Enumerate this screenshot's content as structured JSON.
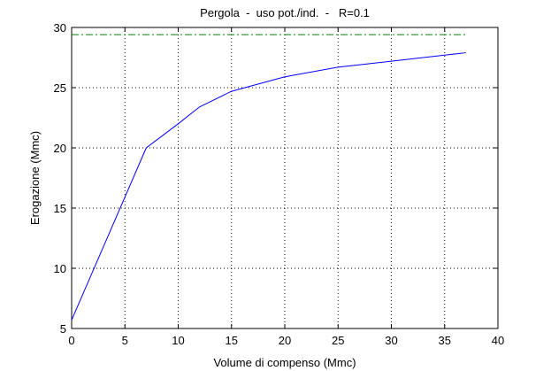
{
  "chart_data": {
    "type": "line",
    "title": "Pergola  -  uso pot./ind.  -   R=0.1",
    "xlabel": "Volume di compenso (Mmc)",
    "ylabel": "Erogazione (Mmc)",
    "xlim": [
      0,
      40
    ],
    "xticks": [
      0,
      5,
      10,
      15,
      20,
      25,
      30,
      35,
      40
    ],
    "ylim": [
      5,
      30
    ],
    "yticks": [
      5,
      10,
      15,
      20,
      25,
      30
    ],
    "grid": true,
    "series": [
      {
        "color": "#0000ff",
        "linestyle": "solid",
        "x": [
          0,
          7,
          10,
          12,
          15,
          20,
          25,
          30,
          35,
          37
        ],
        "values": [
          5.7,
          20,
          22,
          23.4,
          24.7,
          25.9,
          26.7,
          27.2,
          27.7,
          27.9
        ]
      },
      {
        "color": "#008000",
        "linestyle": "dashdot",
        "x": [
          0,
          37
        ],
        "values": [
          29.4,
          29.4
        ]
      }
    ]
  }
}
